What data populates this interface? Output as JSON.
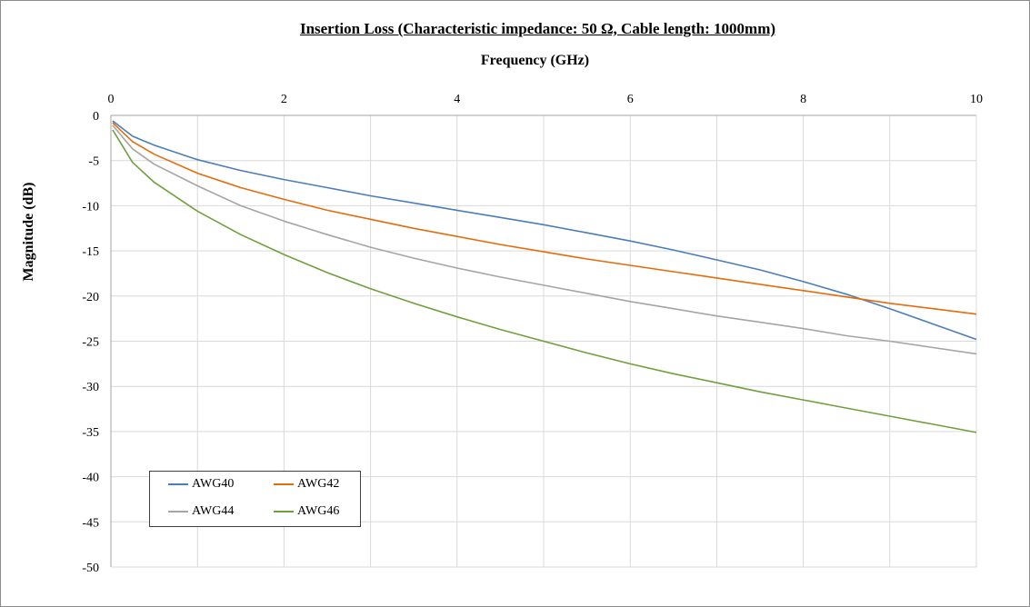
{
  "chart_data": {
    "type": "line",
    "title": "Insertion Loss (Characteristic impedance: 50 Ω, Cable length: 1000mm)",
    "xlabel": "Frequency (GHz)",
    "ylabel": "Magnitude (dB)",
    "xlim": [
      0,
      10
    ],
    "ylim": [
      -50,
      0
    ],
    "x_ticks": [
      "0",
      "2",
      "4",
      "6",
      "8",
      "10"
    ],
    "x_tick_values": [
      0,
      2,
      4,
      6,
      8,
      10
    ],
    "y_ticks": [
      "0",
      "-5",
      "-10",
      "-15",
      "-20",
      "-25",
      "-30",
      "-35",
      "-40",
      "-45",
      "-50"
    ],
    "y_tick_values": [
      0,
      -5,
      -10,
      -15,
      -20,
      -25,
      -30,
      -35,
      -40,
      -45,
      -50
    ],
    "x_axis_position": "top",
    "grid": "horizontal and vertical",
    "legend_position": "bottom-left",
    "series": [
      {
        "name": "AWG40",
        "color": "#4a7ebb",
        "x": [
          0.02,
          0.25,
          0.5,
          1,
          1.5,
          2,
          2.5,
          3,
          3.5,
          4,
          4.5,
          5,
          5.5,
          6,
          6.5,
          7,
          7.5,
          8,
          8.5,
          9,
          9.5,
          10
        ],
        "y": [
          -0.6,
          -2.3,
          -3.3,
          -4.9,
          -6.1,
          -7.1,
          -8.0,
          -8.9,
          -9.7,
          -10.5,
          -11.3,
          -12.1,
          -13.0,
          -13.9,
          -14.9,
          -16.0,
          -17.1,
          -18.4,
          -19.8,
          -21.4,
          -23.1,
          -24.8
        ]
      },
      {
        "name": "AWG42",
        "color": "#e46c0a",
        "x": [
          0.02,
          0.25,
          0.5,
          1,
          1.5,
          2,
          2.5,
          3,
          3.5,
          4,
          4.5,
          5,
          5.5,
          6,
          6.5,
          7,
          7.5,
          8,
          8.5,
          9,
          9.5,
          10
        ],
        "y": [
          -0.8,
          -2.9,
          -4.3,
          -6.4,
          -8.0,
          -9.3,
          -10.5,
          -11.5,
          -12.5,
          -13.4,
          -14.3,
          -15.1,
          -15.9,
          -16.6,
          -17.3,
          -18.0,
          -18.7,
          -19.4,
          -20.1,
          -20.8,
          -21.4,
          -22.0
        ]
      },
      {
        "name": "AWG44",
        "color": "#a5a5a5",
        "x": [
          0.02,
          0.25,
          0.5,
          1,
          1.5,
          2,
          2.5,
          3,
          3.5,
          4,
          4.5,
          5,
          5.5,
          6,
          6.5,
          7,
          7.5,
          8,
          8.5,
          9,
          9.5,
          10
        ],
        "y": [
          -1.1,
          -3.7,
          -5.4,
          -7.8,
          -10.0,
          -11.7,
          -13.2,
          -14.6,
          -15.8,
          -16.9,
          -17.9,
          -18.8,
          -19.7,
          -20.6,
          -21.4,
          -22.2,
          -22.9,
          -23.6,
          -24.4,
          -25.0,
          -25.7,
          -26.4
        ]
      },
      {
        "name": "AWG46",
        "color": "#70a03c",
        "x": [
          0.02,
          0.25,
          0.5,
          1,
          1.5,
          2,
          2.5,
          3,
          3.5,
          4,
          4.5,
          5,
          5.5,
          6,
          6.5,
          7,
          7.5,
          8,
          8.5,
          9,
          9.5,
          10
        ],
        "y": [
          -1.6,
          -5.2,
          -7.4,
          -10.6,
          -13.2,
          -15.4,
          -17.4,
          -19.2,
          -20.8,
          -22.3,
          -23.7,
          -25.0,
          -26.3,
          -27.5,
          -28.6,
          -29.6,
          -30.6,
          -31.5,
          -32.4,
          -33.3,
          -34.2,
          -35.1
        ]
      }
    ]
  }
}
